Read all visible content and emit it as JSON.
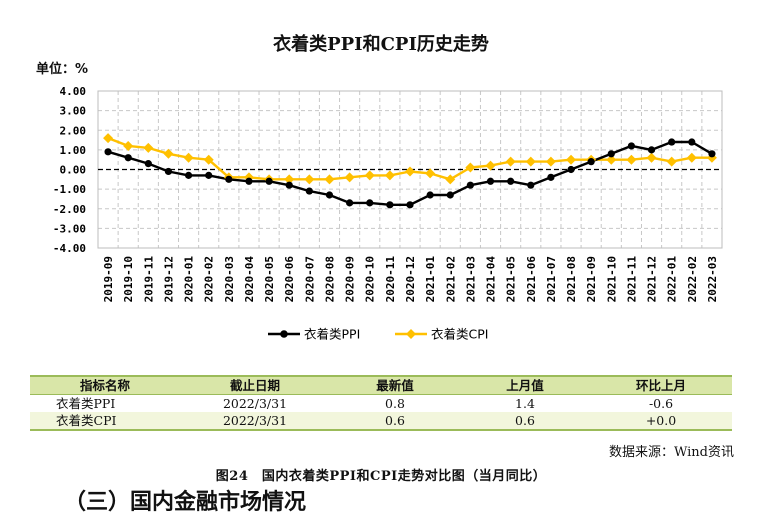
{
  "chart_data": {
    "type": "line",
    "title": "衣着类PPI和CPI历史走势",
    "unit_label": "单位：%",
    "ylim": [
      -4.0,
      4.0
    ],
    "y_ticks": [
      "4.00",
      "3.00",
      "2.00",
      "1.00",
      "0.00",
      "-1.00",
      "-2.00",
      "-3.00",
      "-4.00"
    ],
    "grid": true,
    "legend_placement": "bottom",
    "categories": [
      "2019-09",
      "2019-10",
      "2019-11",
      "2019-12",
      "2020-01",
      "2020-02",
      "2020-03",
      "2020-04",
      "2020-05",
      "2020-06",
      "2020-07",
      "2020-08",
      "2020-09",
      "2020-10",
      "2020-11",
      "2020-12",
      "2021-01",
      "2021-02",
      "2021-03",
      "2021-04",
      "2021-05",
      "2021-06",
      "2021-07",
      "2021-08",
      "2021-09",
      "2021-10",
      "2021-11",
      "2021-12",
      "2022-01",
      "2022-02",
      "2022-03"
    ],
    "series": [
      {
        "name": "衣着类PPI",
        "color": "#000000",
        "values": [
          0.9,
          0.6,
          0.3,
          -0.1,
          -0.3,
          -0.3,
          -0.5,
          -0.6,
          -0.6,
          -0.8,
          -1.1,
          -1.3,
          -1.7,
          -1.7,
          -1.8,
          -1.8,
          -1.3,
          -1.3,
          -0.8,
          -0.6,
          -0.6,
          -0.8,
          -0.4,
          0.0,
          0.4,
          0.8,
          1.2,
          1.0,
          1.4,
          1.4,
          0.8
        ]
      },
      {
        "name": "衣着类CPI",
        "color": "#ffc000",
        "values": [
          1.6,
          1.2,
          1.1,
          0.8,
          0.6,
          0.5,
          -0.4,
          -0.4,
          -0.5,
          -0.5,
          -0.5,
          -0.5,
          -0.4,
          -0.3,
          -0.3,
          -0.1,
          -0.2,
          -0.5,
          0.1,
          0.2,
          0.4,
          0.4,
          0.4,
          0.5,
          0.5,
          0.5,
          0.5,
          0.6,
          0.4,
          0.6,
          0.6
        ]
      }
    ]
  },
  "table": {
    "headers": [
      "指标名称",
      "截止日期",
      "最新值",
      "上月值",
      "环比上月"
    ],
    "rows": [
      [
        "衣着类PPI",
        "2022/3/31",
        "0.8",
        "1.4",
        "-0.6"
      ],
      [
        "衣着类CPI",
        "2022/3/31",
        "0.6",
        "0.6",
        "+0.0"
      ]
    ]
  },
  "source_note": "数据来源：Wind资讯",
  "figure_caption": "图24　国内衣着类PPI和CPI走势对比图（当月同比）",
  "section_heading": "（三）国内金融市场情况"
}
